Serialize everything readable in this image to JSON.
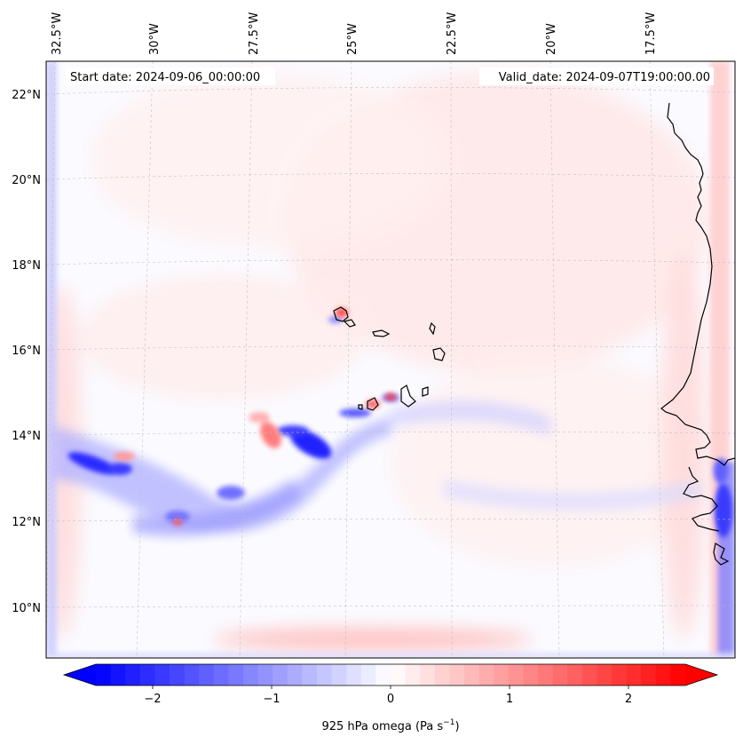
{
  "header": {
    "start_date": "Start date: 2024-09-06_00:00:00",
    "valid_date": "Valid_date: 2024-09-07T19:00:00.00"
  },
  "map": {
    "lon_labels": [
      "32.5°W",
      "30°W",
      "27.5°W",
      "25°W",
      "22.5°W",
      "20°W",
      "17.5°W"
    ],
    "lat_labels": [
      "22°N",
      "20°N",
      "18°N",
      "16°N",
      "14°N",
      "12°N",
      "10°N"
    ],
    "gridlines": "dashed",
    "coastline_color": "#000000",
    "field_colors": {
      "negative": "#0000ff",
      "zero": "#ffffff",
      "positive": "#ff0000"
    }
  },
  "colorbar": {
    "ticks": [
      "−2",
      "−1",
      "0",
      "1",
      "2"
    ],
    "label": "925 hPa omega (Pa s",
    "label_sup": "−1",
    "label_end": ")",
    "extend": "both"
  }
}
